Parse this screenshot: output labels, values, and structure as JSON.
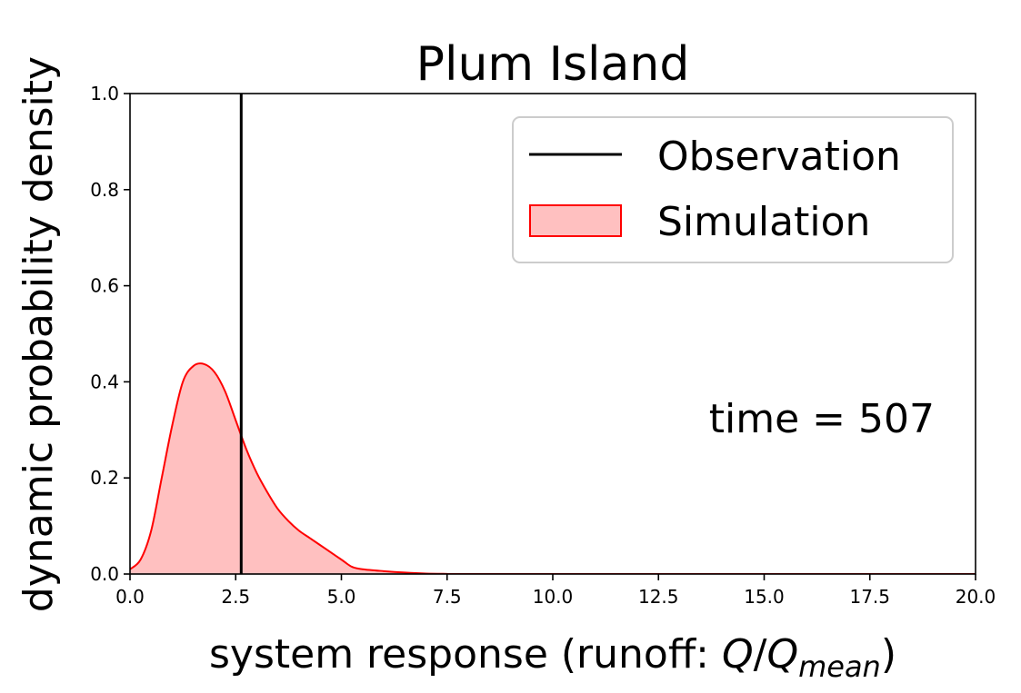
{
  "chart_data": {
    "type": "area",
    "title": "Plum Island",
    "xlabel_prefix": "system response (runoff: ",
    "xlabel_q": "Q",
    "xlabel_slash": "/",
    "xlabel_qmean": "Q",
    "xlabel_sub": "mean",
    "xlabel_suffix": ")",
    "ylabel": "dynamic probability density",
    "xlim": [
      0,
      20
    ],
    "ylim": [
      0,
      1
    ],
    "xticks": [
      "0.0",
      "2.5",
      "5.0",
      "7.5",
      "10.0",
      "12.5",
      "15.0",
      "17.5",
      "20.0"
    ],
    "yticks": [
      "0.0",
      "0.2",
      "0.4",
      "0.6",
      "0.8",
      "1.0"
    ],
    "grid": false,
    "legend_position": "top-right",
    "legend": [
      "Observation",
      "Simulation"
    ],
    "annotation": "time = 507",
    "observation": {
      "name": "Observation",
      "x": 2.63,
      "color": "#000000"
    },
    "simulation": {
      "name": "Simulation",
      "line_color": "#ff0000",
      "fill_color": "#ffc0c0",
      "x": [
        0,
        0.25,
        0.5,
        0.75,
        1.0,
        1.25,
        1.5,
        1.75,
        2.0,
        2.25,
        2.5,
        2.75,
        3.0,
        3.25,
        3.5,
        3.75,
        4.0,
        4.25,
        4.5,
        4.75,
        5.0,
        5.25,
        5.5,
        6.0,
        6.5,
        7.0,
        7.5,
        8.0,
        20.0
      ],
      "y": [
        0.01,
        0.03,
        0.09,
        0.2,
        0.31,
        0.4,
        0.433,
        0.437,
        0.42,
        0.38,
        0.32,
        0.26,
        0.21,
        0.17,
        0.135,
        0.11,
        0.09,
        0.075,
        0.06,
        0.045,
        0.03,
        0.015,
        0.01,
        0.006,
        0.003,
        0.001,
        0.0003,
        0.0,
        0.0
      ]
    }
  }
}
